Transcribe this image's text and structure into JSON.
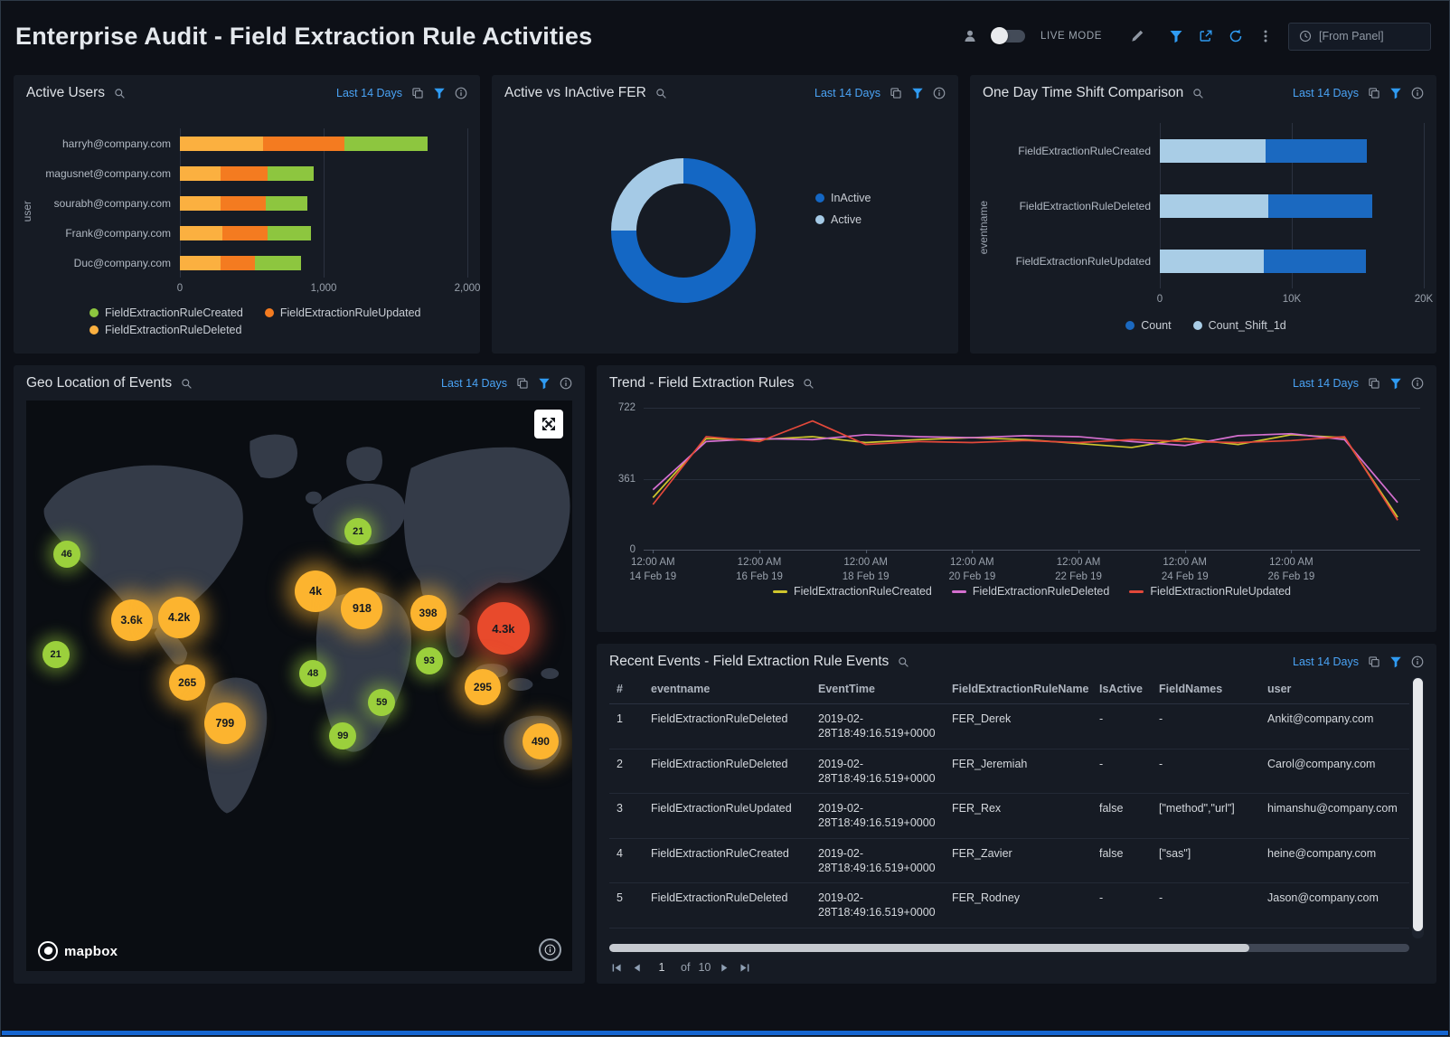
{
  "header": {
    "title": "Enterprise Audit - Field Extraction Rule Activities",
    "live_mode": "LIVE MODE",
    "from_panel": "[From Panel]"
  },
  "panels": {
    "active_users": {
      "title": "Active Users",
      "time_range": "Last 14 Days",
      "ylabel": "user"
    },
    "donut": {
      "title": "Active vs InActive FER",
      "time_range": "Last 14 Days"
    },
    "timeshift": {
      "title": "One Day Time Shift Comparison",
      "time_range": "Last 14 Days",
      "ylabel": "eventname"
    },
    "geo": {
      "title": "Geo Location of Events",
      "time_range": "Last 14 Days",
      "mapbox": "mapbox"
    },
    "trend": {
      "title": "Trend - Field Extraction Rules",
      "time_range": "Last 14 Days"
    },
    "recent": {
      "title": "Recent Events - Field Extraction Rule Events",
      "time_range": "Last 14 Days",
      "page": "1",
      "of_label": "of",
      "total": "10"
    }
  },
  "chart_data": [
    {
      "id": "active_users",
      "type": "bar",
      "orientation": "horizontal",
      "title": "Active Users",
      "ylabel": "user",
      "categories": [
        "harryh@company.com",
        "magusnet@company.com",
        "sourabh@company.com",
        "Frank@company.com",
        "Duc@company.com"
      ],
      "series": [
        {
          "name": "FieldExtractionRuleDeleted",
          "color": "#fbb040",
          "values": [
            580,
            280,
            280,
            295,
            280
          ]
        },
        {
          "name": "FieldExtractionRuleUpdated",
          "color": "#f47b20",
          "values": [
            565,
            330,
            315,
            315,
            245
          ]
        },
        {
          "name": "FieldExtractionRuleCreated",
          "color": "#8dc63f",
          "values": [
            580,
            320,
            295,
            300,
            315
          ]
        }
      ],
      "xmax": 2000,
      "xticks": [
        "0",
        "1,000",
        "2,000"
      ],
      "legend": [
        {
          "name": "FieldExtractionRuleCreated",
          "color": "#8dc63f"
        },
        {
          "name": "FieldExtractionRuleUpdated",
          "color": "#f47b20"
        },
        {
          "name": "FieldExtractionRuleDeleted",
          "color": "#fbb040"
        }
      ]
    },
    {
      "id": "active_vs_inactive",
      "type": "pie",
      "title": "Active vs InActive FER",
      "labels": [
        "InActive",
        "Active"
      ],
      "values": [
        75,
        25
      ],
      "colors": [
        "#1467c4",
        "#a5cae6"
      ]
    },
    {
      "id": "one_day_shift",
      "type": "bar",
      "orientation": "horizontal",
      "title": "One Day Time Shift Comparison",
      "ylabel": "eventname",
      "categories": [
        "FieldExtractionRuleCreated",
        "FieldExtractionRuleDeleted",
        "FieldExtractionRuleUpdated"
      ],
      "series": [
        {
          "name": "Count_Shift_1d",
          "color": "#a9cde6",
          "values": [
            8000,
            8200,
            7900
          ]
        },
        {
          "name": "Count",
          "color": "#1b69c0",
          "values": [
            7700,
            7900,
            7700
          ]
        }
      ],
      "xmax": 20000,
      "xticks": [
        "0",
        "10K",
        "20K"
      ],
      "legend": [
        {
          "name": "Count",
          "color": "#1b69c0"
        },
        {
          "name": "Count_Shift_1d",
          "color": "#a9cde6"
        }
      ]
    },
    {
      "id": "trend",
      "type": "line",
      "title": "Trend - Field Extraction Rules",
      "ymax": 722,
      "yticks": [
        "722",
        "361",
        "0"
      ],
      "x_start": 1.2,
      "x_step": 6.85,
      "x_ticks": [
        [
          "12:00 AM",
          "14 Feb 19"
        ],
        [
          "12:00 AM",
          "16 Feb 19"
        ],
        [
          "12:00 AM",
          "18 Feb 19"
        ],
        [
          "12:00 AM",
          "20 Feb 19"
        ],
        [
          "12:00 AM",
          "22 Feb 19"
        ],
        [
          "12:00 AM",
          "24 Feb 19"
        ],
        [
          "12:00 AM",
          "26 Feb 19"
        ]
      ],
      "series": [
        {
          "name": "FieldExtractionRuleCreated",
          "color": "#cfc52d",
          "values": [
            265,
            565,
            560,
            575,
            545,
            560,
            570,
            560,
            540,
            520,
            565,
            535,
            585,
            570,
            165
          ]
        },
        {
          "name": "FieldExtractionRuleDeleted",
          "color": "#d46fcf",
          "values": [
            305,
            550,
            565,
            560,
            585,
            575,
            570,
            580,
            575,
            550,
            530,
            580,
            590,
            560,
            240
          ]
        },
        {
          "name": "FieldExtractionRuleUpdated",
          "color": "#e2483a",
          "values": [
            230,
            575,
            550,
            655,
            535,
            550,
            545,
            555,
            545,
            560,
            550,
            545,
            555,
            575,
            150
          ]
        }
      ]
    },
    {
      "id": "geo_events",
      "type": "map",
      "title": "Geo Location of Events",
      "markers": [
        {
          "label": "46",
          "x": 7.4,
          "y": 27.0,
          "size": "s",
          "color": "green"
        },
        {
          "label": "21",
          "x": 5.4,
          "y": 44.5,
          "size": "s",
          "color": "green"
        },
        {
          "label": "3.6k",
          "x": 19.3,
          "y": 38.5,
          "size": "l",
          "color": "amber"
        },
        {
          "label": "4.2k",
          "x": 28.0,
          "y": 38.0,
          "size": "l",
          "color": "amber"
        },
        {
          "label": "265",
          "x": 29.5,
          "y": 49.5,
          "size": "m",
          "color": "amber"
        },
        {
          "label": "799",
          "x": 36.4,
          "y": 56.5,
          "size": "l",
          "color": "amber"
        },
        {
          "label": "21",
          "x": 60.8,
          "y": 23.0,
          "size": "s",
          "color": "green"
        },
        {
          "label": "4k",
          "x": 53.0,
          "y": 33.5,
          "size": "l",
          "color": "amber"
        },
        {
          "label": "918",
          "x": 61.5,
          "y": 36.5,
          "size": "l",
          "color": "amber"
        },
        {
          "label": "398",
          "x": 73.6,
          "y": 37.2,
          "size": "m",
          "color": "amber"
        },
        {
          "label": "4.3k",
          "x": 87.4,
          "y": 40.0,
          "size": "xl",
          "color": "red"
        },
        {
          "label": "93",
          "x": 73.8,
          "y": 45.6,
          "size": "s",
          "color": "green"
        },
        {
          "label": "48",
          "x": 52.5,
          "y": 47.8,
          "size": "s",
          "color": "green"
        },
        {
          "label": "295",
          "x": 83.6,
          "y": 50.2,
          "size": "m",
          "color": "amber"
        },
        {
          "label": "59",
          "x": 65.1,
          "y": 53.0,
          "size": "s",
          "color": "green"
        },
        {
          "label": "99",
          "x": 58.0,
          "y": 58.8,
          "size": "s",
          "color": "green"
        },
        {
          "label": "490",
          "x": 94.2,
          "y": 59.8,
          "size": "m",
          "color": "amber"
        }
      ]
    },
    {
      "id": "recent_events",
      "type": "table",
      "title": "Recent Events - Field Extraction Rule Events",
      "columns": [
        "#",
        "eventname",
        "EventTime",
        "FieldExtractionRuleName",
        "IsActive",
        "FieldNames",
        "user"
      ],
      "rows": [
        [
          "1",
          "FieldExtractionRuleDeleted",
          "2019-02-28T18:49:16.519+0000",
          "FER_Derek",
          "-",
          "-",
          "Ankit@company.com"
        ],
        [
          "2",
          "FieldExtractionRuleDeleted",
          "2019-02-28T18:49:16.519+0000",
          "FER_Jeremiah",
          "-",
          "-",
          "Carol@company.com"
        ],
        [
          "3",
          "FieldExtractionRuleUpdated",
          "2019-02-28T18:49:16.519+0000",
          "FER_Rex",
          "false",
          "[\"method\",\"url\"]",
          "himanshu@company.com"
        ],
        [
          "4",
          "FieldExtractionRuleCreated",
          "2019-02-28T18:49:16.519+0000",
          "FER_Zavier",
          "false",
          "[\"sas\"]",
          "heine@company.com"
        ],
        [
          "5",
          "FieldExtractionRuleDeleted",
          "2019-02-28T18:49:16.519+0000",
          "FER_Rodney",
          "-",
          "-",
          "Jason@company.com"
        ]
      ]
    }
  ]
}
